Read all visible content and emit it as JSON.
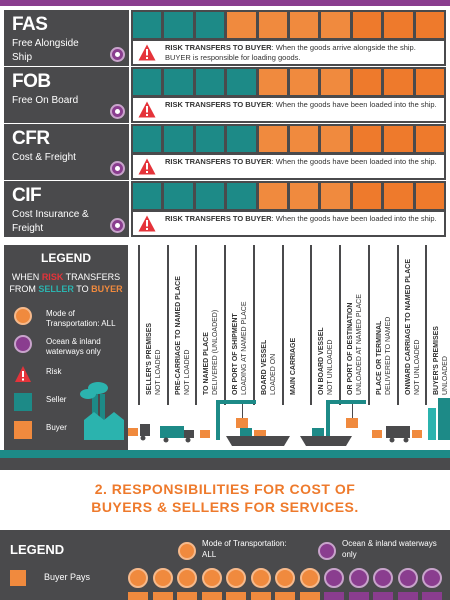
{
  "incoterms": [
    {
      "code": "FAS",
      "name": "Free Alongside Ship",
      "mode": "Ocean & inland waterways only",
      "seller_cells": 3,
      "risk_label": "RISK TRANSFERS TO BUYER",
      "risk_text": ": When the goods arrive alongside the ship. BUYER is responsible for loading goods."
    },
    {
      "code": "FOB",
      "name": "Free On Board",
      "mode": "Ocean & inland waterways only",
      "seller_cells": 4,
      "risk_label": "RISK TRANSFERS TO BUYER",
      "risk_text": ": When the goods have been loaded into the ship."
    },
    {
      "code": "CFR",
      "name": "Cost & Freight",
      "mode": "Ocean & inland waterways only",
      "seller_cells": 4,
      "risk_label": "RISK TRANSFERS TO BUYER",
      "risk_text": ": When the goods have been loaded into the ship."
    },
    {
      "code": "CIF",
      "name": "Cost Insurance & Freight",
      "mode": "Ocean & inland waterways only",
      "seller_cells": 4,
      "risk_label": "RISK TRANSFERS TO BUYER",
      "risk_text": ": When the goods have been loaded into the ship."
    }
  ],
  "total_cells": 10,
  "legend": {
    "title": "LEGEND",
    "sub_1": "WHEN ",
    "sub_risk": "RISK",
    "sub_2": " TRANSFERS FROM ",
    "sub_seller": "SELLER",
    "sub_3": " TO ",
    "sub_buyer": "BUYER",
    "items": [
      {
        "icon": "mode-all-icon",
        "label": "Mode of Transportation: ALL"
      },
      {
        "icon": "ocean-icon",
        "label": "Ocean & inland waterways only"
      },
      {
        "icon": "risk-icon",
        "label": "Risk"
      },
      {
        "icon": "seller-swatch",
        "label": "Seller"
      },
      {
        "icon": "buyer-swatch",
        "label": "Buyer"
      }
    ]
  },
  "stages": [
    {
      "bold": "SELLER'S PREMISES",
      "plain": "NOT LOADED"
    },
    {
      "bold": "PRE-CARRIAGE TO NAMED PLACE",
      "plain": "NOT LOADED"
    },
    {
      "bold": "TO NAMED PLACE",
      "plain": "DELIVERED (UNLOADED)"
    },
    {
      "bold": "OR PORT OF SHIPMENT",
      "plain": "LOADING AT NAMED PLACE"
    },
    {
      "bold": "BOARD VESSEL",
      "plain": "LOADED ON"
    },
    {
      "bold": "MAIN CARRIAGE",
      "plain": ""
    },
    {
      "bold": "ON BOARD VESSEL",
      "plain": "NOT UNLOADED"
    },
    {
      "bold": "OR PORT OF DESTINATION",
      "plain": "UNLOADED AT NAMED PLACE"
    },
    {
      "bold": "PLACE OR TERMINAL",
      "plain": "DELIVERED TO NAMED"
    },
    {
      "bold": "ONWARD CARRIAGE TO NAMED PLACE",
      "plain": "NOT UNLOADED"
    },
    {
      "bold": "BUYER'S PREMISES",
      "plain": "UNLOADED"
    }
  ],
  "section2": {
    "title_line1": "2. RESPONSIBILITIES FOR COST OF",
    "title_line2": "BUYERS & SELLERS FOR SERVICES.",
    "legend_title": "LEGEND",
    "buyer_pays": "Buyer Pays",
    "mode_all": "Mode of Transportation: ALL",
    "ocean": "Ocean & inland waterways only",
    "coin_types": [
      "o",
      "o",
      "o",
      "o",
      "o",
      "o",
      "o",
      "o",
      "p",
      "p",
      "p",
      "p",
      "p"
    ]
  },
  "colors": {
    "seller": "#1d8a87",
    "buyer": "#f08a3e",
    "risk": "#e5333a",
    "ocean": "#8a3d8f",
    "panel": "#4a4a4c"
  }
}
